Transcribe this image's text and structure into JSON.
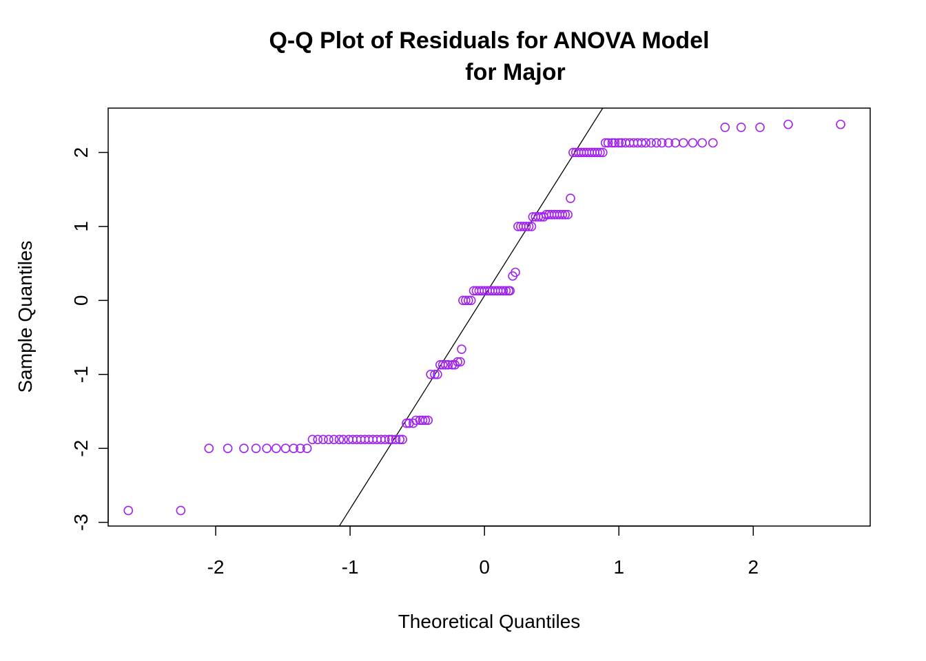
{
  "chart_data": {
    "type": "scatter",
    "title_line1": "Q-Q Plot of Residuals for ANOVA Model",
    "title_line2": "for Major",
    "xlabel": "Theoretical Quantiles",
    "ylabel": "Sample Quantiles",
    "xlim": [
      -2.8,
      2.87
    ],
    "ylim": [
      -3.05,
      2.6
    ],
    "x_ticks": [
      -2,
      -1,
      0,
      1,
      2
    ],
    "x_tick_labels": [
      "-2",
      "-1",
      "0",
      "1",
      "2"
    ],
    "y_ticks": [
      -3,
      -2,
      -1,
      0,
      1,
      2
    ],
    "y_tick_labels": [
      "-3",
      "-2",
      "-1",
      "0",
      "1",
      "2"
    ],
    "point_color": "#a020f0",
    "line_color": "#000000",
    "grid": false,
    "reference_line": {
      "x1": -1.08,
      "y1": -3.05,
      "x2": 0.88,
      "y2": 2.6
    },
    "points": [
      [
        -2.65,
        -2.84
      ],
      [
        -2.26,
        -2.84
      ],
      [
        -2.05,
        -2.0
      ],
      [
        -1.91,
        -2.0
      ],
      [
        -1.79,
        -2.0
      ],
      [
        -1.7,
        -2.0
      ],
      [
        -1.62,
        -2.0
      ],
      [
        -1.55,
        -2.0
      ],
      [
        -1.48,
        -2.0
      ],
      [
        -1.42,
        -2.0
      ],
      [
        -1.37,
        -2.0
      ],
      [
        -1.32,
        -2.0
      ],
      [
        -1.28,
        -1.88
      ],
      [
        -1.24,
        -1.88
      ],
      [
        -1.2,
        -1.88
      ],
      [
        -1.16,
        -1.88
      ],
      [
        -1.12,
        -1.88
      ],
      [
        -1.08,
        -1.88
      ],
      [
        -1.05,
        -1.88
      ],
      [
        -1.01,
        -1.88
      ],
      [
        -0.98,
        -1.88
      ],
      [
        -0.95,
        -1.88
      ],
      [
        -0.92,
        -1.88
      ],
      [
        -0.89,
        -1.88
      ],
      [
        -0.86,
        -1.88
      ],
      [
        -0.83,
        -1.88
      ],
      [
        -0.8,
        -1.88
      ],
      [
        -0.77,
        -1.88
      ],
      [
        -0.74,
        -1.88
      ],
      [
        -0.71,
        -1.88
      ],
      [
        -0.69,
        -1.88
      ],
      [
        -0.66,
        -1.88
      ],
      [
        -0.63,
        -1.88
      ],
      [
        -0.61,
        -1.88
      ],
      [
        -0.58,
        -1.66
      ],
      [
        -0.56,
        -1.66
      ],
      [
        -0.53,
        -1.66
      ],
      [
        -0.51,
        -1.62
      ],
      [
        -0.48,
        -1.62
      ],
      [
        -0.46,
        -1.62
      ],
      [
        -0.44,
        -1.62
      ],
      [
        -0.42,
        -1.62
      ],
      [
        -0.4,
        -1.0
      ],
      [
        -0.37,
        -1.0
      ],
      [
        -0.35,
        -1.0
      ],
      [
        -0.33,
        -0.87
      ],
      [
        -0.31,
        -0.87
      ],
      [
        -0.29,
        -0.87
      ],
      [
        -0.27,
        -0.87
      ],
      [
        -0.24,
        -0.87
      ],
      [
        -0.22,
        -0.87
      ],
      [
        -0.2,
        -0.83
      ],
      [
        -0.18,
        -0.83
      ],
      [
        -0.17,
        -0.66
      ],
      [
        -0.16,
        0.0
      ],
      [
        -0.14,
        0.0
      ],
      [
        -0.12,
        0.0
      ],
      [
        -0.1,
        0.0
      ],
      [
        -0.08,
        0.13
      ],
      [
        -0.06,
        0.13
      ],
      [
        -0.04,
        0.13
      ],
      [
        -0.02,
        0.13
      ],
      [
        0.0,
        0.13
      ],
      [
        0.02,
        0.13
      ],
      [
        0.04,
        0.13
      ],
      [
        0.06,
        0.13
      ],
      [
        0.08,
        0.13
      ],
      [
        0.1,
        0.13
      ],
      [
        0.12,
        0.13
      ],
      [
        0.14,
        0.13
      ],
      [
        0.16,
        0.13
      ],
      [
        0.18,
        0.13
      ],
      [
        0.19,
        0.13
      ],
      [
        0.21,
        0.33
      ],
      [
        0.23,
        0.38
      ],
      [
        0.25,
        1.0
      ],
      [
        0.27,
        1.0
      ],
      [
        0.29,
        1.0
      ],
      [
        0.31,
        1.0
      ],
      [
        0.33,
        1.0
      ],
      [
        0.35,
        1.0
      ],
      [
        0.36,
        1.13
      ],
      [
        0.38,
        1.13
      ],
      [
        0.4,
        1.13
      ],
      [
        0.42,
        1.13
      ],
      [
        0.44,
        1.13
      ],
      [
        0.46,
        1.16
      ],
      [
        0.48,
        1.16
      ],
      [
        0.5,
        1.16
      ],
      [
        0.52,
        1.16
      ],
      [
        0.54,
        1.16
      ],
      [
        0.56,
        1.16
      ],
      [
        0.58,
        1.16
      ],
      [
        0.6,
        1.16
      ],
      [
        0.62,
        1.16
      ],
      [
        0.64,
        1.38
      ],
      [
        0.66,
        2.0
      ],
      [
        0.68,
        2.0
      ],
      [
        0.7,
        2.0
      ],
      [
        0.72,
        2.0
      ],
      [
        0.74,
        2.0
      ],
      [
        0.76,
        2.0
      ],
      [
        0.78,
        2.0
      ],
      [
        0.8,
        2.0
      ],
      [
        0.82,
        2.0
      ],
      [
        0.84,
        2.0
      ],
      [
        0.86,
        2.0
      ],
      [
        0.88,
        2.0
      ],
      [
        0.9,
        2.13
      ],
      [
        0.92,
        2.13
      ],
      [
        0.95,
        2.13
      ],
      [
        0.97,
        2.13
      ],
      [
        1.0,
        2.13
      ],
      [
        1.02,
        2.13
      ],
      [
        1.05,
        2.13
      ],
      [
        1.08,
        2.13
      ],
      [
        1.11,
        2.13
      ],
      [
        1.14,
        2.13
      ],
      [
        1.17,
        2.13
      ],
      [
        1.2,
        2.13
      ],
      [
        1.24,
        2.13
      ],
      [
        1.28,
        2.13
      ],
      [
        1.32,
        2.13
      ],
      [
        1.37,
        2.13
      ],
      [
        1.42,
        2.13
      ],
      [
        1.48,
        2.13
      ],
      [
        1.55,
        2.13
      ],
      [
        1.62,
        2.13
      ],
      [
        1.7,
        2.13
      ],
      [
        1.79,
        2.34
      ],
      [
        1.91,
        2.34
      ],
      [
        2.05,
        2.34
      ],
      [
        2.26,
        2.38
      ],
      [
        2.65,
        2.38
      ]
    ]
  }
}
